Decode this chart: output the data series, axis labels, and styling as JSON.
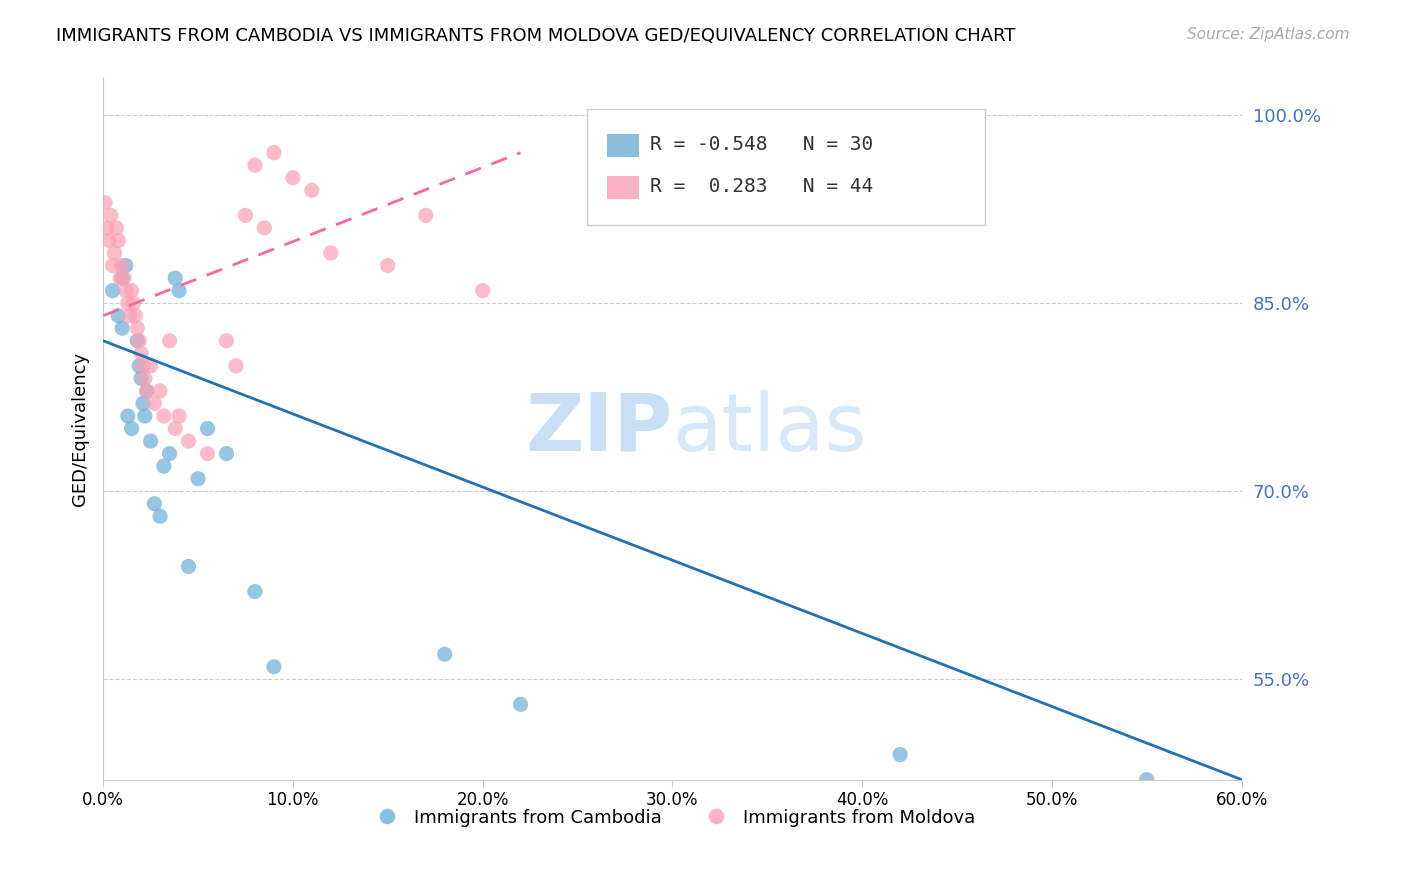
{
  "title": "IMMIGRANTS FROM CAMBODIA VS IMMIGRANTS FROM MOLDOVA GED/EQUIVALENCY CORRELATION CHART",
  "source": "Source: ZipAtlas.com",
  "xlabel": "",
  "ylabel": "GED/Equivalency",
  "legend_label_blue": "Immigrants from Cambodia",
  "legend_label_pink": "Immigrants from Moldova",
  "r_blue": -0.548,
  "n_blue": 30,
  "r_pink": 0.283,
  "n_pink": 44,
  "xlim": [
    0.0,
    0.6
  ],
  "ylim": [
    0.47,
    1.03
  ],
  "yticks": [
    0.55,
    0.7,
    0.85,
    1.0
  ],
  "ytick_labels": [
    "55.0%",
    "70.0%",
    "85.0%",
    "100.0%"
  ],
  "color_blue": "#6baed6",
  "color_pink": "#fa9fb5",
  "line_blue": "#2171b5",
  "line_pink": "#f768a1",
  "watermark_zip": "ZIP",
  "watermark_atlas": "atlas",
  "blue_x": [
    0.005,
    0.008,
    0.01,
    0.01,
    0.012,
    0.013,
    0.015,
    0.018,
    0.019,
    0.02,
    0.021,
    0.022,
    0.023,
    0.025,
    0.027,
    0.03,
    0.032,
    0.035,
    0.038,
    0.04,
    0.045,
    0.05,
    0.055,
    0.065,
    0.08,
    0.09,
    0.18,
    0.22,
    0.42,
    0.55
  ],
  "blue_y": [
    0.86,
    0.84,
    0.87,
    0.83,
    0.88,
    0.76,
    0.75,
    0.82,
    0.8,
    0.79,
    0.77,
    0.76,
    0.78,
    0.74,
    0.69,
    0.68,
    0.72,
    0.73,
    0.87,
    0.86,
    0.64,
    0.71,
    0.75,
    0.73,
    0.62,
    0.56,
    0.57,
    0.53,
    0.49,
    0.47
  ],
  "pink_x": [
    0.001,
    0.002,
    0.003,
    0.004,
    0.005,
    0.006,
    0.007,
    0.008,
    0.009,
    0.01,
    0.011,
    0.012,
    0.013,
    0.014,
    0.015,
    0.016,
    0.017,
    0.018,
    0.019,
    0.02,
    0.021,
    0.022,
    0.023,
    0.025,
    0.027,
    0.03,
    0.032,
    0.035,
    0.038,
    0.04,
    0.045,
    0.055,
    0.065,
    0.07,
    0.075,
    0.08,
    0.085,
    0.09,
    0.1,
    0.11,
    0.12,
    0.15,
    0.17,
    0.2
  ],
  "pink_y": [
    0.93,
    0.91,
    0.9,
    0.92,
    0.88,
    0.89,
    0.91,
    0.9,
    0.87,
    0.88,
    0.87,
    0.86,
    0.85,
    0.84,
    0.86,
    0.85,
    0.84,
    0.83,
    0.82,
    0.81,
    0.8,
    0.79,
    0.78,
    0.8,
    0.77,
    0.78,
    0.76,
    0.82,
    0.75,
    0.76,
    0.74,
    0.73,
    0.82,
    0.8,
    0.92,
    0.96,
    0.91,
    0.97,
    0.95,
    0.94,
    0.89,
    0.88,
    0.92,
    0.86
  ]
}
